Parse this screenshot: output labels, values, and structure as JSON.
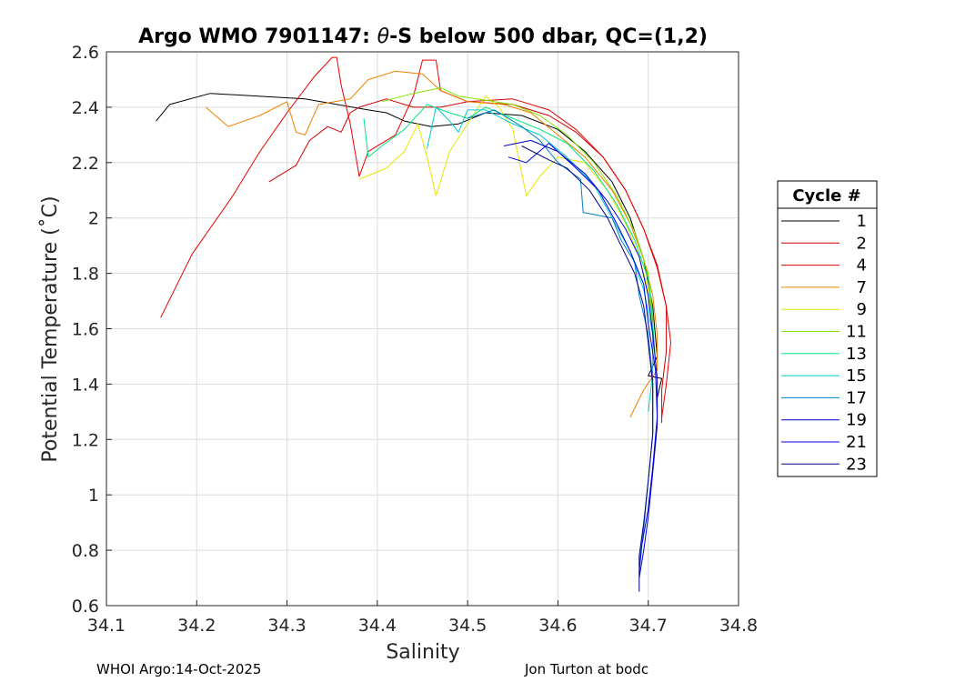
{
  "chart_data": {
    "type": "line",
    "title_prefix": "Argo WMO 7901147: ",
    "title_theta": "θ",
    "title_suffix": "-S below 500 dbar,  QC=(1,2)",
    "xlabel": "Salinity",
    "ylabel": "Potential Temperature (˚C)",
    "xlim": [
      34.1,
      34.8
    ],
    "ylim": [
      0.6,
      2.6
    ],
    "xticks": [
      "34.1",
      "34.2",
      "34.3",
      "34.4",
      "34.5",
      "34.6",
      "34.7",
      "34.8"
    ],
    "yticks": [
      "0.6",
      "0.8",
      "1",
      "1.2",
      "1.4",
      "1.6",
      "1.8",
      "2",
      "2.2",
      "2.4",
      "2.6"
    ],
    "grid": true,
    "legend": {
      "title": "Cycle #",
      "placement": "outside-right"
    },
    "series": [
      {
        "name": "1",
        "color": "#000000",
        "points": [
          [
            34.155,
            2.35
          ],
          [
            34.17,
            2.41
          ],
          [
            34.215,
            2.45
          ],
          [
            34.32,
            2.43
          ],
          [
            34.39,
            2.39
          ],
          [
            34.41,
            2.38
          ],
          [
            34.43,
            2.35
          ],
          [
            34.46,
            2.33
          ],
          [
            34.49,
            2.34
          ],
          [
            34.52,
            2.38
          ],
          [
            34.56,
            2.37
          ],
          [
            34.6,
            2.32
          ],
          [
            34.63,
            2.24
          ],
          [
            34.66,
            2.13
          ],
          [
            34.68,
            2.0
          ],
          [
            34.695,
            1.85
          ],
          [
            34.705,
            1.68
          ],
          [
            34.71,
            1.5
          ],
          [
            34.7,
            1.43
          ],
          [
            34.715,
            1.42
          ],
          [
            34.71,
            1.35
          ]
        ]
      },
      {
        "name": "2",
        "color": "#cc0000",
        "points": [
          [
            34.28,
            2.13
          ],
          [
            34.31,
            2.19
          ],
          [
            34.325,
            2.28
          ],
          [
            34.345,
            2.33
          ],
          [
            34.36,
            2.31
          ],
          [
            34.37,
            2.38
          ],
          [
            34.38,
            2.4
          ],
          [
            34.41,
            2.43
          ],
          [
            34.44,
            2.4
          ],
          [
            34.47,
            2.4
          ],
          [
            34.5,
            2.42
          ],
          [
            34.55,
            2.41
          ],
          [
            34.59,
            2.37
          ],
          [
            34.62,
            2.31
          ],
          [
            34.65,
            2.22
          ],
          [
            34.675,
            2.1
          ],
          [
            34.695,
            1.96
          ],
          [
            34.71,
            1.82
          ],
          [
            34.72,
            1.68
          ],
          [
            34.72,
            1.52
          ],
          [
            34.715,
            1.38
          ],
          [
            34.715,
            1.26
          ]
        ]
      },
      {
        "name": "4",
        "color": "#e60000",
        "points": [
          [
            34.16,
            1.64
          ],
          [
            34.195,
            1.87
          ],
          [
            34.24,
            2.08
          ],
          [
            34.27,
            2.24
          ],
          [
            34.3,
            2.38
          ],
          [
            34.33,
            2.51
          ],
          [
            34.35,
            2.58
          ],
          [
            34.355,
            2.58
          ],
          [
            34.36,
            2.48
          ],
          [
            34.37,
            2.34
          ],
          [
            34.38,
            2.15
          ],
          [
            34.39,
            2.24
          ],
          [
            34.42,
            2.3
          ],
          [
            34.44,
            2.44
          ],
          [
            34.45,
            2.57
          ],
          [
            34.465,
            2.57
          ],
          [
            34.47,
            2.46
          ],
          [
            34.5,
            2.42
          ],
          [
            34.55,
            2.43
          ],
          [
            34.59,
            2.39
          ],
          [
            34.62,
            2.32
          ],
          [
            34.65,
            2.22
          ],
          [
            34.675,
            2.1
          ],
          [
            34.695,
            1.96
          ],
          [
            34.71,
            1.83
          ],
          [
            34.72,
            1.68
          ],
          [
            34.725,
            1.55
          ],
          [
            34.72,
            1.4
          ],
          [
            34.715,
            1.28
          ]
        ]
      },
      {
        "name": "7",
        "color": "#f08000",
        "points": [
          [
            34.21,
            2.4
          ],
          [
            34.235,
            2.33
          ],
          [
            34.27,
            2.37
          ],
          [
            34.3,
            2.42
          ],
          [
            34.31,
            2.31
          ],
          [
            34.32,
            2.3
          ],
          [
            34.335,
            2.41
          ],
          [
            34.37,
            2.43
          ],
          [
            34.39,
            2.5
          ],
          [
            34.42,
            2.53
          ],
          [
            34.45,
            2.52
          ],
          [
            34.47,
            2.46
          ],
          [
            34.5,
            2.42
          ],
          [
            34.54,
            2.41
          ],
          [
            34.57,
            2.38
          ],
          [
            34.6,
            2.3
          ],
          [
            34.63,
            2.22
          ],
          [
            34.66,
            2.1
          ],
          [
            34.68,
            1.98
          ],
          [
            34.695,
            1.85
          ],
          [
            34.705,
            1.72
          ],
          [
            34.71,
            1.58
          ],
          [
            34.71,
            1.45
          ],
          [
            34.695,
            1.38
          ],
          [
            34.68,
            1.28
          ]
        ]
      },
      {
        "name": "9",
        "color": "#e6e600",
        "points": [
          [
            34.38,
            2.14
          ],
          [
            34.41,
            2.18
          ],
          [
            34.43,
            2.24
          ],
          [
            34.445,
            2.34
          ],
          [
            34.455,
            2.22
          ],
          [
            34.465,
            2.08
          ],
          [
            34.48,
            2.24
          ],
          [
            34.5,
            2.34
          ],
          [
            34.52,
            2.44
          ],
          [
            34.535,
            2.4
          ],
          [
            34.55,
            2.32
          ],
          [
            34.565,
            2.08
          ],
          [
            34.58,
            2.15
          ],
          [
            34.6,
            2.22
          ],
          [
            34.63,
            2.2
          ],
          [
            34.655,
            2.1
          ],
          [
            34.675,
            1.98
          ],
          [
            34.69,
            1.86
          ],
          [
            34.7,
            1.74
          ],
          [
            34.705,
            1.6
          ],
          [
            34.705,
            1.48
          ]
        ]
      },
      {
        "name": "11",
        "color": "#80e600",
        "points": [
          [
            34.405,
            2.42
          ],
          [
            34.44,
            2.45
          ],
          [
            34.47,
            2.47
          ],
          [
            34.49,
            2.44
          ],
          [
            34.51,
            2.43
          ],
          [
            34.55,
            2.41
          ],
          [
            34.58,
            2.37
          ],
          [
            34.61,
            2.3
          ],
          [
            34.64,
            2.2
          ],
          [
            34.665,
            2.08
          ],
          [
            34.685,
            1.95
          ],
          [
            34.7,
            1.8
          ],
          [
            34.705,
            1.65
          ],
          [
            34.705,
            1.5
          ]
        ]
      },
      {
        "name": "13",
        "color": "#00e680",
        "points": [
          [
            34.385,
            2.36
          ],
          [
            34.39,
            2.22
          ],
          [
            34.405,
            2.26
          ],
          [
            34.43,
            2.32
          ],
          [
            34.455,
            2.41
          ],
          [
            34.48,
            2.38
          ],
          [
            34.5,
            2.36
          ],
          [
            34.52,
            2.4
          ],
          [
            34.55,
            2.36
          ],
          [
            34.58,
            2.32
          ],
          [
            34.61,
            2.27
          ],
          [
            34.64,
            2.17
          ],
          [
            34.665,
            2.05
          ],
          [
            34.685,
            1.92
          ],
          [
            34.7,
            1.78
          ],
          [
            34.705,
            1.62
          ],
          [
            34.708,
            1.48
          ]
        ]
      },
      {
        "name": "15",
        "color": "#00cccc",
        "points": [
          [
            34.455,
            2.25
          ],
          [
            34.465,
            2.4
          ],
          [
            34.48,
            2.35
          ],
          [
            34.49,
            2.31
          ],
          [
            34.5,
            2.39
          ],
          [
            34.52,
            2.39
          ],
          [
            34.55,
            2.34
          ],
          [
            34.58,
            2.3
          ],
          [
            34.61,
            2.22
          ],
          [
            34.64,
            2.12
          ],
          [
            34.66,
            2.0
          ],
          [
            34.68,
            1.88
          ],
          [
            34.695,
            1.74
          ],
          [
            34.705,
            1.58
          ],
          [
            34.705,
            1.44
          ],
          [
            34.7,
            1.3
          ]
        ]
      },
      {
        "name": "17",
        "color": "#0080cc",
        "points": [
          [
            34.5,
            2.36
          ],
          [
            34.53,
            2.39
          ],
          [
            34.56,
            2.33
          ],
          [
            34.58,
            2.28
          ],
          [
            34.6,
            2.2
          ],
          [
            34.625,
            2.14
          ],
          [
            34.628,
            2.02
          ],
          [
            34.66,
            2.0
          ],
          [
            34.67,
            1.92
          ],
          [
            34.685,
            1.84
          ],
          [
            34.69,
            1.72
          ],
          [
            34.7,
            1.58
          ],
          [
            34.705,
            1.42
          ],
          [
            34.705,
            1.22
          ],
          [
            34.7,
            1.05
          ],
          [
            34.695,
            0.88
          ],
          [
            34.69,
            0.75
          ]
        ]
      },
      {
        "name": "19",
        "color": "#0000cc",
        "points": [
          [
            34.54,
            2.26
          ],
          [
            34.57,
            2.28
          ],
          [
            34.6,
            2.24
          ],
          [
            34.63,
            2.16
          ],
          [
            34.655,
            2.06
          ],
          [
            34.675,
            1.96
          ],
          [
            34.69,
            1.86
          ],
          [
            34.7,
            1.72
          ],
          [
            34.705,
            1.58
          ],
          [
            34.71,
            1.42
          ],
          [
            34.71,
            1.25
          ],
          [
            34.705,
            1.08
          ],
          [
            34.7,
            0.92
          ],
          [
            34.695,
            0.8
          ],
          [
            34.69,
            0.7
          ]
        ]
      },
      {
        "name": "21",
        "color": "#0000e6",
        "points": [
          [
            34.545,
            2.22
          ],
          [
            34.565,
            2.2
          ],
          [
            34.59,
            2.27
          ],
          [
            34.62,
            2.18
          ],
          [
            34.645,
            2.1
          ],
          [
            34.665,
            1.98
          ],
          [
            34.68,
            1.88
          ],
          [
            34.695,
            1.76
          ],
          [
            34.7,
            1.62
          ],
          [
            34.708,
            1.45
          ],
          [
            34.71,
            1.28
          ],
          [
            34.705,
            1.1
          ],
          [
            34.7,
            0.95
          ],
          [
            34.693,
            0.82
          ],
          [
            34.69,
            0.72
          ]
        ]
      },
      {
        "name": "23",
        "color": "#000080",
        "points": [
          [
            34.56,
            2.26
          ],
          [
            34.59,
            2.21
          ],
          [
            34.61,
            2.18
          ],
          [
            34.635,
            2.1
          ],
          [
            34.655,
            2.0
          ],
          [
            34.67,
            1.9
          ],
          [
            34.685,
            1.8
          ],
          [
            34.695,
            1.68
          ],
          [
            34.7,
            1.55
          ],
          [
            34.705,
            1.4
          ],
          [
            34.705,
            1.22
          ],
          [
            34.7,
            1.05
          ],
          [
            34.695,
            0.9
          ],
          [
            34.69,
            0.78
          ],
          [
            34.69,
            0.65
          ]
        ]
      }
    ]
  },
  "footer": {
    "left": "WHOI Argo:14-Oct-2025",
    "right": "Jon Turton at bodc"
  }
}
